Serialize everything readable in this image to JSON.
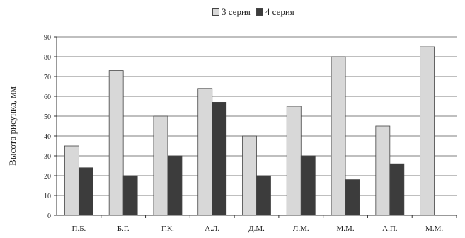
{
  "chart_data": {
    "type": "bar",
    "categories": [
      "П.Б.",
      "Б.Г.",
      "Г.К.",
      "А.Л.",
      "Д.М.",
      "Л.М.",
      "М.М.",
      "А.П.",
      "М.М."
    ],
    "series": [
      {
        "name": "3 серия",
        "color": "#d8d8d8",
        "values": [
          35,
          73,
          50,
          64,
          40,
          55,
          80,
          45,
          85
        ]
      },
      {
        "name": "4 серия",
        "color": "#3c3c3c",
        "values": [
          24,
          20,
          30,
          57,
          20,
          30,
          18,
          26,
          null
        ]
      }
    ],
    "ylabel": "Высота рисунка, мм",
    "xlabel": "",
    "ylim": [
      0,
      90
    ],
    "yticks": [
      0,
      10,
      20,
      30,
      40,
      50,
      60,
      70,
      80,
      90
    ],
    "grid": true,
    "legend_position": "top-center"
  }
}
